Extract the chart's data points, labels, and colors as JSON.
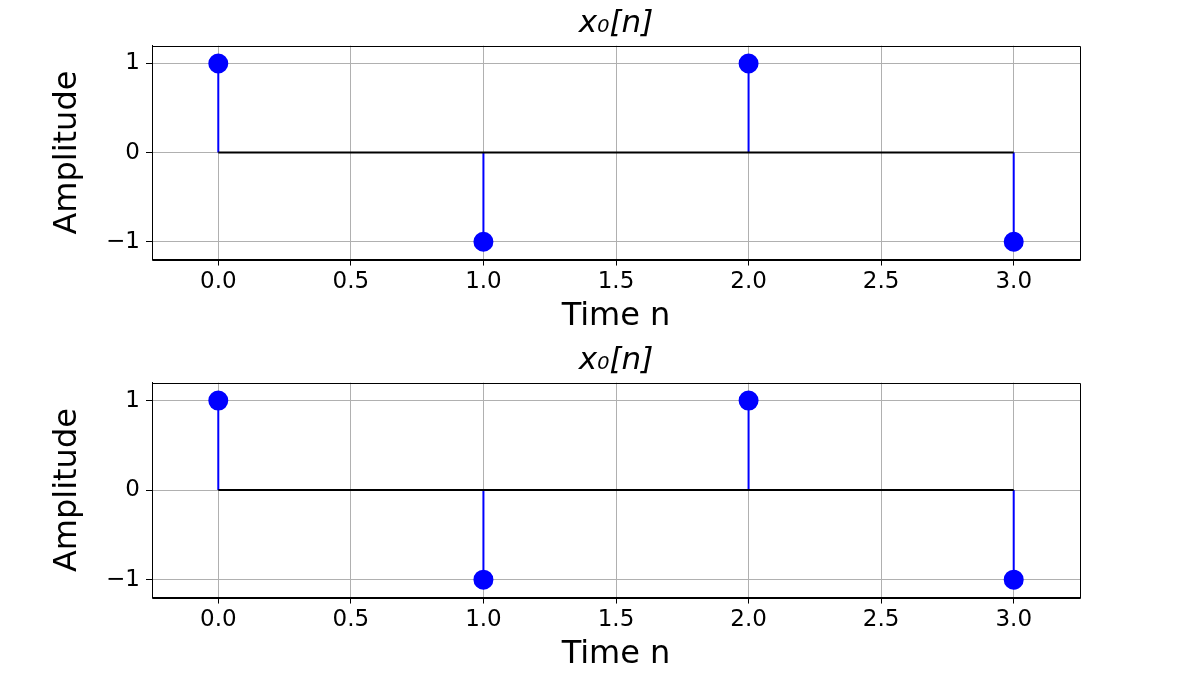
{
  "chart_data": [
    {
      "type": "lollipop",
      "title": "x₀[n]",
      "xlabel": "Time n",
      "ylabel": "Amplitude",
      "x": [
        0,
        1,
        2,
        3
      ],
      "values": [
        1,
        -1,
        1,
        -1
      ],
      "color": "#0000ff",
      "xlim": [
        -0.25,
        3.25
      ],
      "ylim": [
        -1.2,
        1.2
      ],
      "xticks": [
        {
          "value": 0,
          "label": "0.0"
        },
        0.5,
        {
          "value": 1,
          "label": "1.0"
        },
        1.5,
        {
          "value": 2,
          "label": "2.0"
        },
        2.5,
        {
          "value": 3,
          "label": "3.0"
        }
      ],
      "yticks": [
        -1,
        0,
        1
      ],
      "grid": true,
      "marker": "circle"
    },
    {
      "type": "lollipop",
      "title": "x₀[n]",
      "xlabel": "Time n",
      "ylabel": "Amplitude",
      "x": [
        0,
        1,
        2,
        3
      ],
      "values": [
        1,
        -1,
        1,
        -1
      ],
      "color": "#0000ff",
      "xlim": [
        -0.25,
        3.25
      ],
      "ylim": [
        -1.2,
        1.2
      ],
      "xticks": [
        {
          "value": 0,
          "label": "0.0"
        },
        0.5,
        {
          "value": 1,
          "label": "1.0"
        },
        1.5,
        {
          "value": 2,
          "label": "2.0"
        },
        2.5,
        {
          "value": 3,
          "label": "3.0"
        }
      ],
      "yticks": [
        -1,
        0,
        1
      ],
      "grid": true,
      "marker": "circle"
    }
  ]
}
